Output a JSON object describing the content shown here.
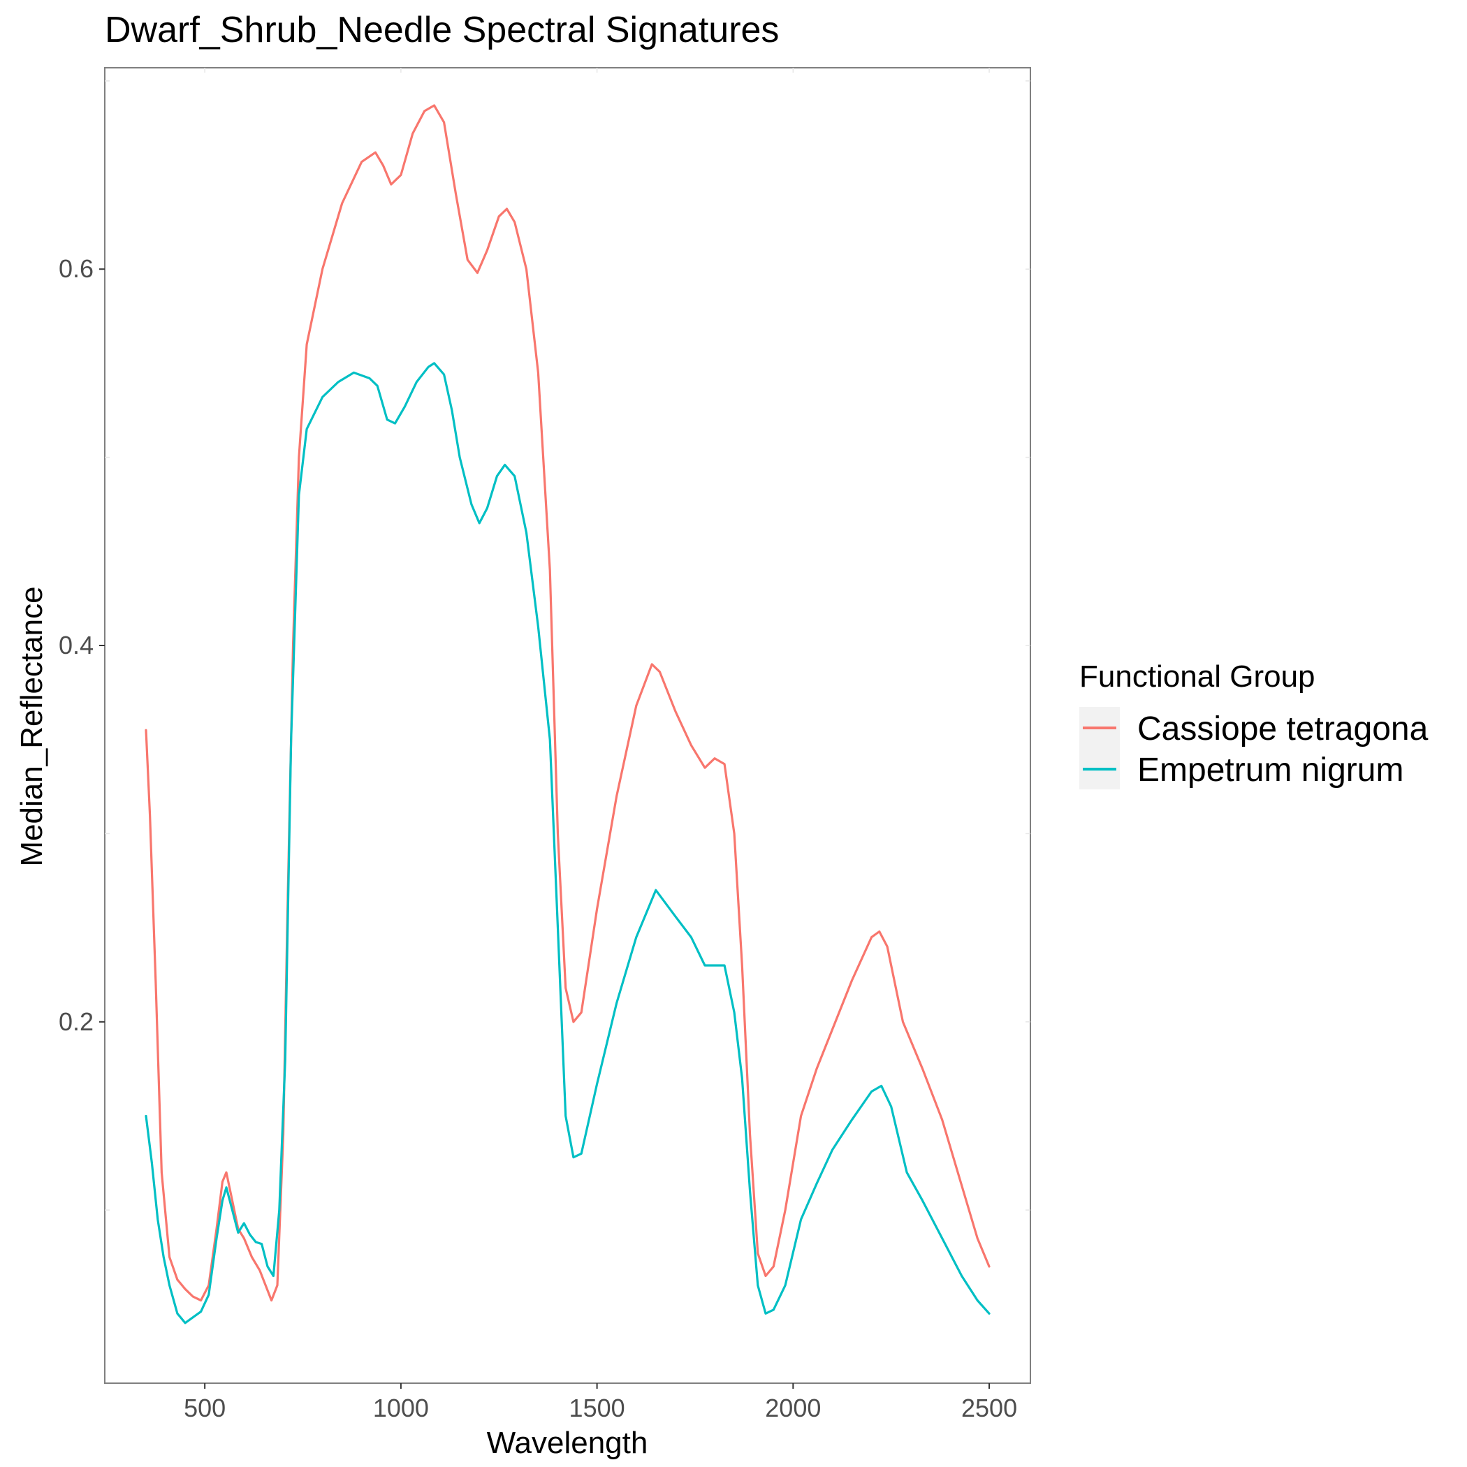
{
  "chart_data": {
    "type": "line",
    "title": "Dwarf_Shrub_Needle Spectral Signatures",
    "xlabel": "Wavelength",
    "ylabel": "Median_Reflectance",
    "xlim": [
      245,
      2605
    ],
    "ylim": [
      0.008,
      0.707
    ],
    "x_ticks": [
      500,
      1000,
      1500,
      2000,
      2500
    ],
    "x_tick_labels": [
      "500",
      "1000",
      "1500",
      "2000",
      "2500"
    ],
    "y_ticks": [
      0.2,
      0.4,
      0.6
    ],
    "y_tick_labels": [
      "0.2",
      "0.4",
      "0.6"
    ],
    "grid": false,
    "legend": {
      "title": "Functional Group",
      "position": "right"
    },
    "series": [
      {
        "name": "Cassiope tetragona",
        "color": "#F8766D",
        "points": [
          [
            350,
            0.355
          ],
          [
            360,
            0.31
          ],
          [
            375,
            0.22
          ],
          [
            390,
            0.12
          ],
          [
            410,
            0.075
          ],
          [
            430,
            0.063
          ],
          [
            450,
            0.058
          ],
          [
            470,
            0.054
          ],
          [
            490,
            0.052
          ],
          [
            510,
            0.06
          ],
          [
            530,
            0.09
          ],
          [
            545,
            0.115
          ],
          [
            555,
            0.12
          ],
          [
            570,
            0.105
          ],
          [
            585,
            0.09
          ],
          [
            600,
            0.085
          ],
          [
            620,
            0.075
          ],
          [
            640,
            0.068
          ],
          [
            655,
            0.06
          ],
          [
            670,
            0.052
          ],
          [
            685,
            0.06
          ],
          [
            700,
            0.14
          ],
          [
            710,
            0.25
          ],
          [
            725,
            0.4
          ],
          [
            740,
            0.5
          ],
          [
            760,
            0.56
          ],
          [
            800,
            0.6
          ],
          [
            850,
            0.635
          ],
          [
            900,
            0.657
          ],
          [
            935,
            0.662
          ],
          [
            955,
            0.655
          ],
          [
            975,
            0.645
          ],
          [
            1000,
            0.65
          ],
          [
            1030,
            0.672
          ],
          [
            1060,
            0.684
          ],
          [
            1085,
            0.687
          ],
          [
            1110,
            0.678
          ],
          [
            1140,
            0.64
          ],
          [
            1170,
            0.605
          ],
          [
            1195,
            0.598
          ],
          [
            1220,
            0.61
          ],
          [
            1250,
            0.628
          ],
          [
            1270,
            0.632
          ],
          [
            1290,
            0.625
          ],
          [
            1320,
            0.6
          ],
          [
            1350,
            0.545
          ],
          [
            1380,
            0.44
          ],
          [
            1400,
            0.3
          ],
          [
            1420,
            0.218
          ],
          [
            1440,
            0.2
          ],
          [
            1460,
            0.205
          ],
          [
            1500,
            0.26
          ],
          [
            1550,
            0.32
          ],
          [
            1600,
            0.368
          ],
          [
            1640,
            0.39
          ],
          [
            1660,
            0.386
          ],
          [
            1700,
            0.365
          ],
          [
            1740,
            0.347
          ],
          [
            1775,
            0.335
          ],
          [
            1800,
            0.34
          ],
          [
            1825,
            0.337
          ],
          [
            1850,
            0.3
          ],
          [
            1870,
            0.23
          ],
          [
            1890,
            0.14
          ],
          [
            1910,
            0.077
          ],
          [
            1930,
            0.065
          ],
          [
            1950,
            0.07
          ],
          [
            1980,
            0.1
          ],
          [
            2020,
            0.15
          ],
          [
            2060,
            0.175
          ],
          [
            2100,
            0.196
          ],
          [
            2150,
            0.222
          ],
          [
            2200,
            0.245
          ],
          [
            2220,
            0.248
          ],
          [
            2240,
            0.24
          ],
          [
            2280,
            0.2
          ],
          [
            2330,
            0.175
          ],
          [
            2380,
            0.148
          ],
          [
            2430,
            0.113
          ],
          [
            2470,
            0.085
          ],
          [
            2500,
            0.07
          ]
        ]
      },
      {
        "name": "Empetrum nigrum",
        "color": "#00BFC4",
        "points": [
          [
            350,
            0.15
          ],
          [
            365,
            0.125
          ],
          [
            380,
            0.095
          ],
          [
            395,
            0.075
          ],
          [
            410,
            0.06
          ],
          [
            430,
            0.045
          ],
          [
            450,
            0.04
          ],
          [
            470,
            0.043
          ],
          [
            490,
            0.046
          ],
          [
            510,
            0.055
          ],
          [
            530,
            0.085
          ],
          [
            545,
            0.105
          ],
          [
            555,
            0.112
          ],
          [
            570,
            0.1
          ],
          [
            585,
            0.088
          ],
          [
            600,
            0.093
          ],
          [
            615,
            0.087
          ],
          [
            630,
            0.083
          ],
          [
            645,
            0.082
          ],
          [
            660,
            0.07
          ],
          [
            675,
            0.065
          ],
          [
            690,
            0.1
          ],
          [
            705,
            0.18
          ],
          [
            720,
            0.35
          ],
          [
            740,
            0.48
          ],
          [
            760,
            0.515
          ],
          [
            800,
            0.532
          ],
          [
            840,
            0.54
          ],
          [
            880,
            0.545
          ],
          [
            920,
            0.542
          ],
          [
            940,
            0.538
          ],
          [
            965,
            0.52
          ],
          [
            985,
            0.518
          ],
          [
            1010,
            0.527
          ],
          [
            1040,
            0.54
          ],
          [
            1070,
            0.548
          ],
          [
            1085,
            0.55
          ],
          [
            1110,
            0.544
          ],
          [
            1130,
            0.525
          ],
          [
            1150,
            0.5
          ],
          [
            1180,
            0.475
          ],
          [
            1200,
            0.465
          ],
          [
            1220,
            0.473
          ],
          [
            1245,
            0.49
          ],
          [
            1265,
            0.496
          ],
          [
            1290,
            0.49
          ],
          [
            1320,
            0.46
          ],
          [
            1350,
            0.41
          ],
          [
            1380,
            0.35
          ],
          [
            1400,
            0.25
          ],
          [
            1420,
            0.15
          ],
          [
            1440,
            0.128
          ],
          [
            1460,
            0.13
          ],
          [
            1500,
            0.167
          ],
          [
            1550,
            0.21
          ],
          [
            1600,
            0.245
          ],
          [
            1650,
            0.27
          ],
          [
            1700,
            0.256
          ],
          [
            1740,
            0.245
          ],
          [
            1775,
            0.23
          ],
          [
            1800,
            0.23
          ],
          [
            1825,
            0.23
          ],
          [
            1850,
            0.205
          ],
          [
            1870,
            0.17
          ],
          [
            1890,
            0.11
          ],
          [
            1910,
            0.06
          ],
          [
            1930,
            0.045
          ],
          [
            1950,
            0.047
          ],
          [
            1980,
            0.06
          ],
          [
            2020,
            0.095
          ],
          [
            2060,
            0.114
          ],
          [
            2100,
            0.132
          ],
          [
            2150,
            0.148
          ],
          [
            2200,
            0.163
          ],
          [
            2225,
            0.166
          ],
          [
            2250,
            0.155
          ],
          [
            2290,
            0.12
          ],
          [
            2330,
            0.105
          ],
          [
            2380,
            0.085
          ],
          [
            2430,
            0.065
          ],
          [
            2470,
            0.052
          ],
          [
            2500,
            0.045
          ]
        ]
      }
    ]
  }
}
